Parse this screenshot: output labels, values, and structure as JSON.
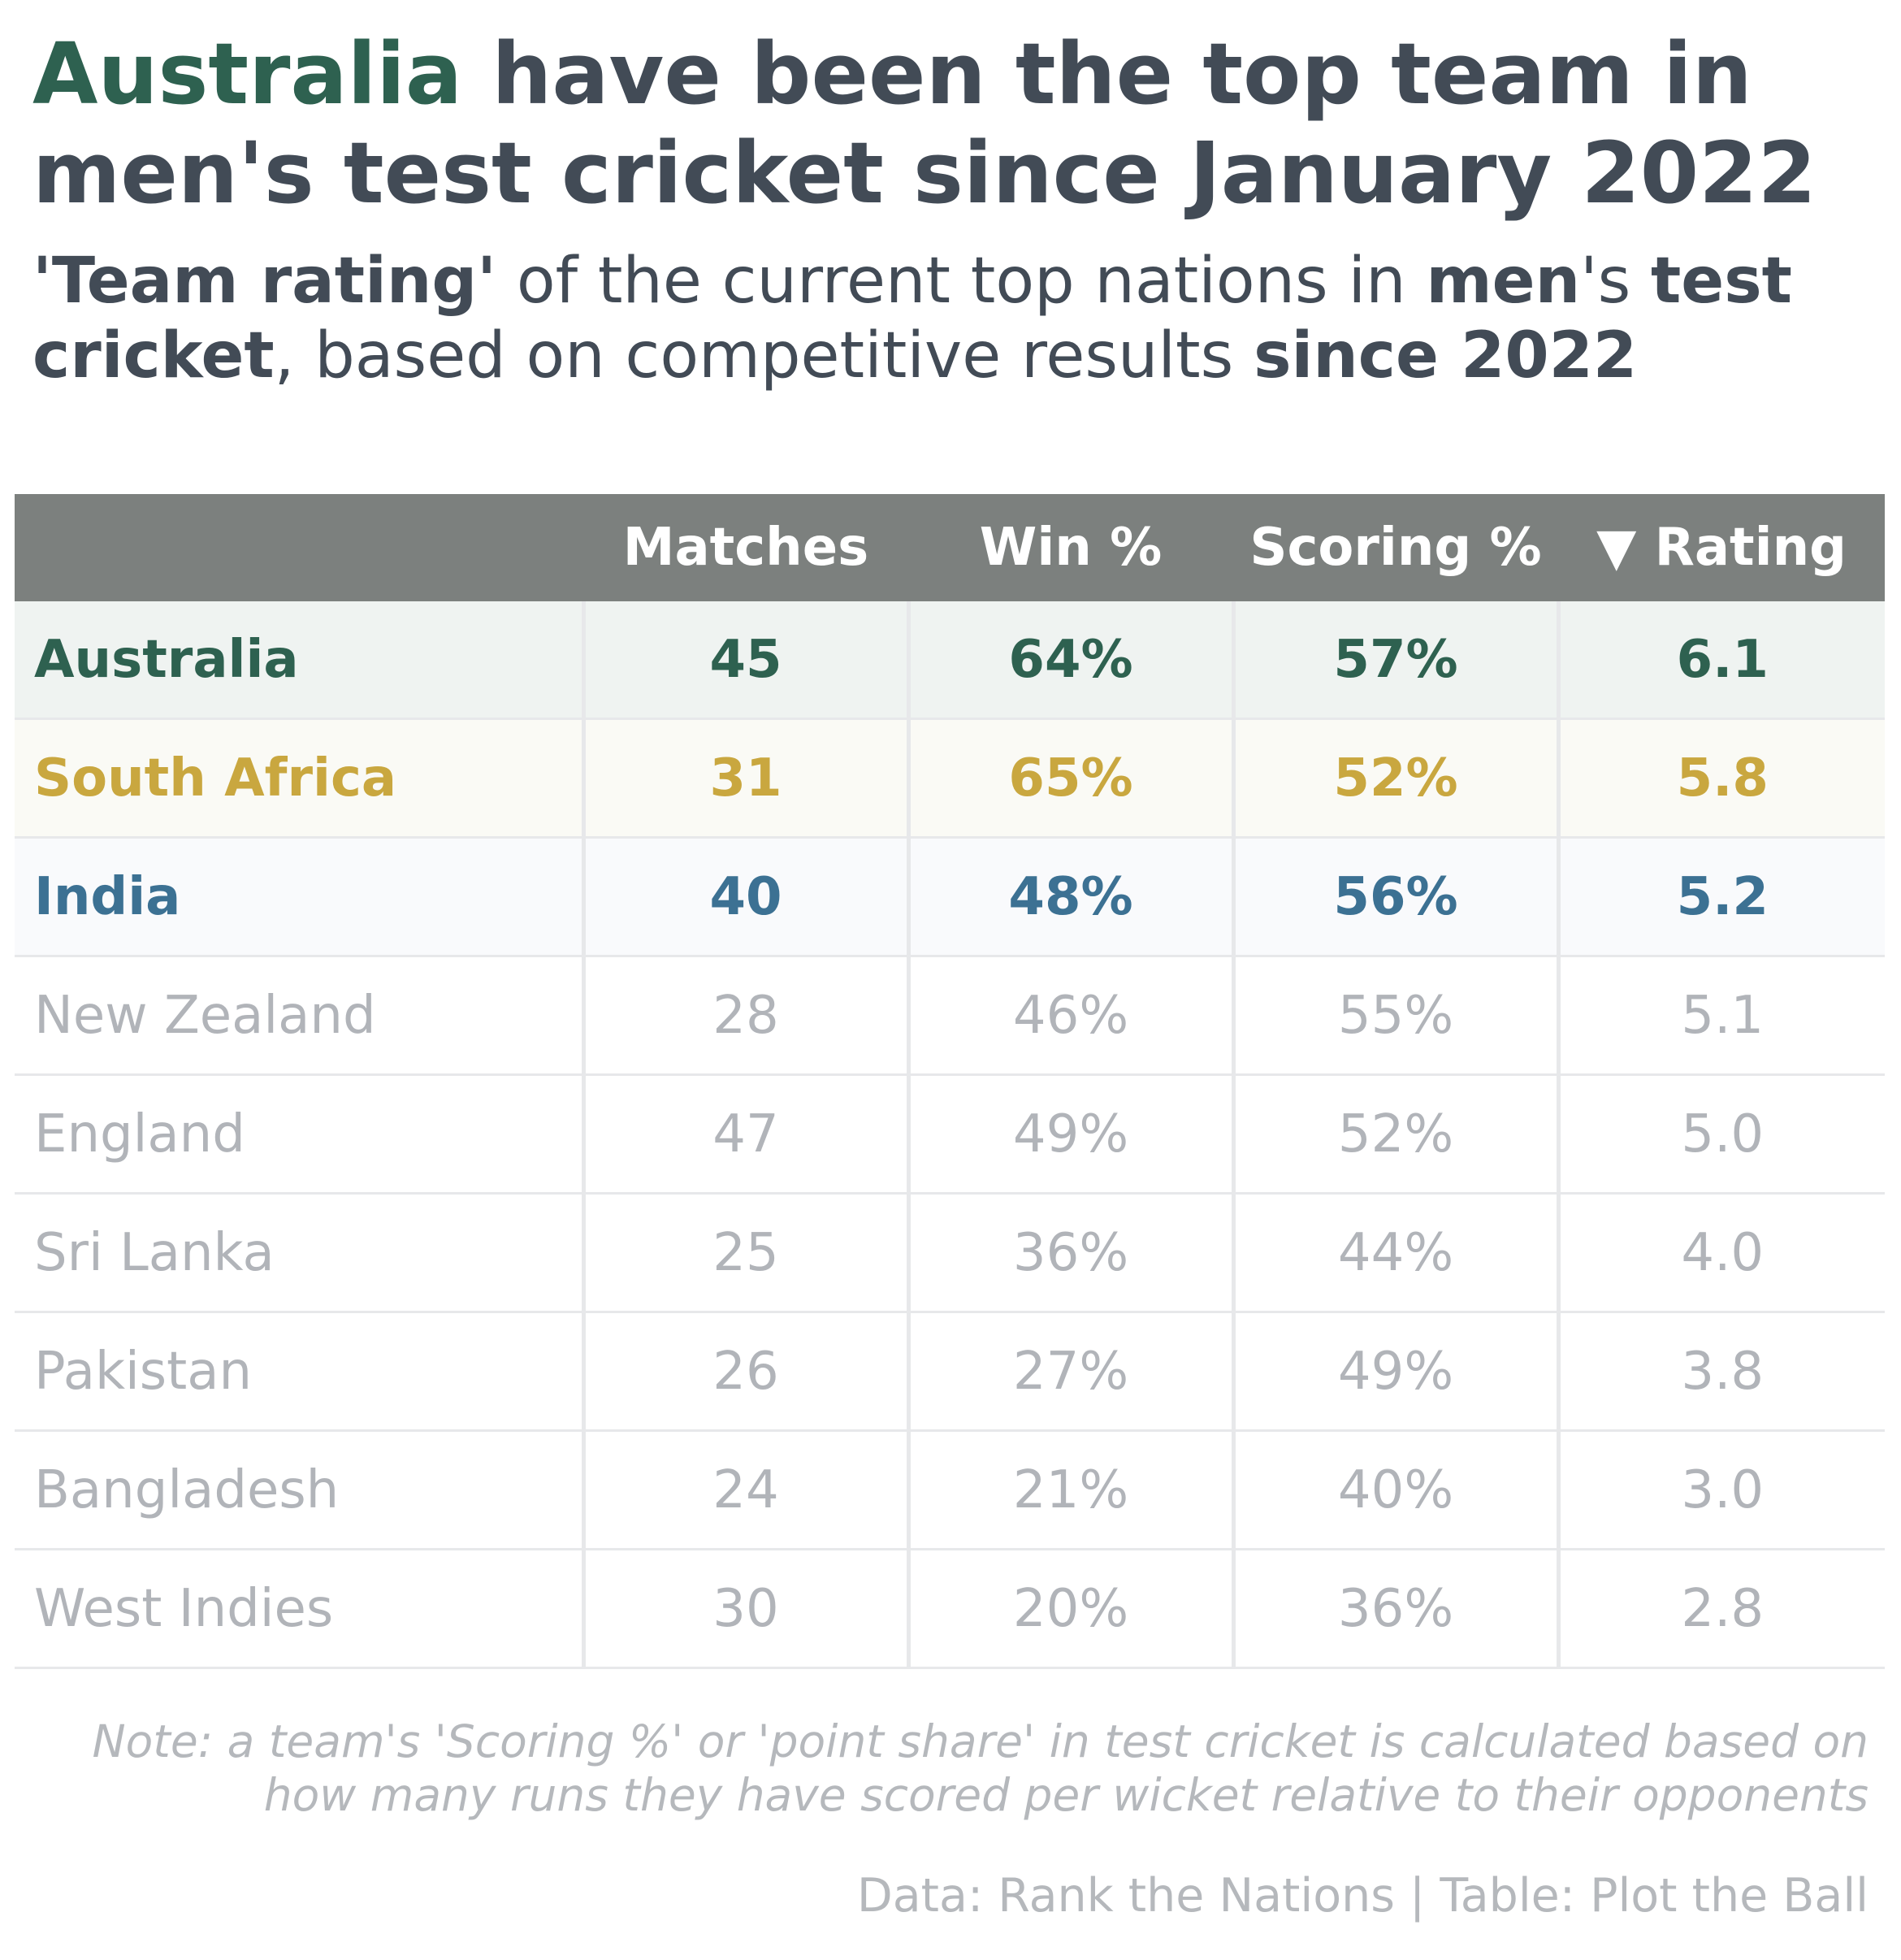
{
  "title": {
    "accent": "Australia",
    "rest_line1": " have been the top team in",
    "line2": "men's test cricket since January 2022"
  },
  "subtitle": {
    "p1": "'Team rating'",
    "p2": " of the current top nations in ",
    "p3": "men",
    "p4": "'s ",
    "p5": "test cricket",
    "p6": ", based on competitive results ",
    "p7": "since 2022"
  },
  "colors": {
    "Australia": "#2e6150",
    "South Africa": "#c9a73f",
    "India": "#3c7193",
    "muted": "#b1b4b9",
    "header_bg": "#7c807e"
  },
  "chart_data": {
    "type": "table",
    "columns": [
      "",
      "Matches",
      "Win %",
      "Scoring %",
      "▼ Rating"
    ],
    "rows": [
      [
        "Australia",
        "45",
        "64%",
        "57%",
        "6.1"
      ],
      [
        "South Africa",
        "31",
        "65%",
        "52%",
        "5.8"
      ],
      [
        "India",
        "40",
        "48%",
        "56%",
        "5.2"
      ],
      [
        "New Zealand",
        "28",
        "46%",
        "55%",
        "5.1"
      ],
      [
        "England",
        "47",
        "49%",
        "52%",
        "5.0"
      ],
      [
        "Sri Lanka",
        "25",
        "36%",
        "44%",
        "4.0"
      ],
      [
        "Pakistan",
        "26",
        "27%",
        "49%",
        "3.8"
      ],
      [
        "Bangladesh",
        "24",
        "21%",
        "40%",
        "3.0"
      ],
      [
        "West Indies",
        "30",
        "20%",
        "36%",
        "2.8"
      ]
    ],
    "sort_column": "Rating",
    "sort_order": "descending"
  },
  "note": {
    "line1": "Note: a team's 'Scoring %' or 'point share' in test cricket is calculated based on",
    "line2": "how many runs they have scored per wicket relative to their opponents"
  },
  "credit": "Data: Rank the Nations | Table: Plot the Ball"
}
